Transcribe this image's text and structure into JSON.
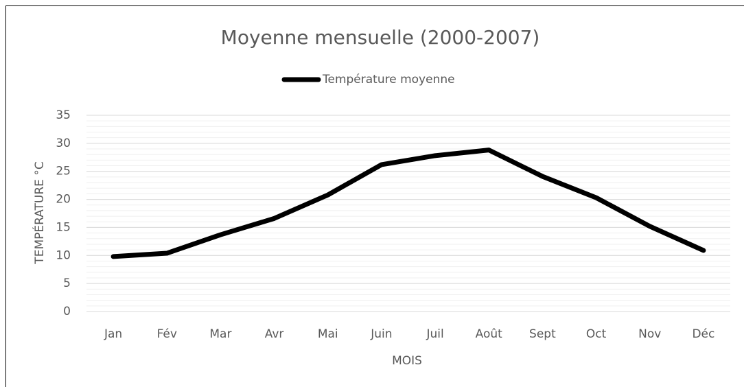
{
  "chart_data": {
    "type": "line",
    "title": "Moyenne mensuelle (2000-2007)",
    "x_label": "MOIS",
    "y_label": "TEMPÉRATURE °C",
    "categories": [
      "Jan",
      "Fév",
      "Mar",
      "Avr",
      "Mai",
      "Juin",
      "Juil",
      "Août",
      "Sept",
      "Oct",
      "Nov",
      "Déc"
    ],
    "series": [
      {
        "name": "Température moyenne",
        "color": "#000000",
        "values": [
          9.8,
          10.4,
          13.7,
          16.6,
          20.8,
          26.2,
          27.8,
          28.8,
          24.1,
          20.3,
          15.2,
          10.9
        ]
      }
    ],
    "ylim": [
      0,
      35
    ],
    "yticks": [
      0,
      5,
      10,
      15,
      20,
      25,
      30,
      35
    ],
    "grid": true,
    "minor_grid": true,
    "legend": "top"
  }
}
